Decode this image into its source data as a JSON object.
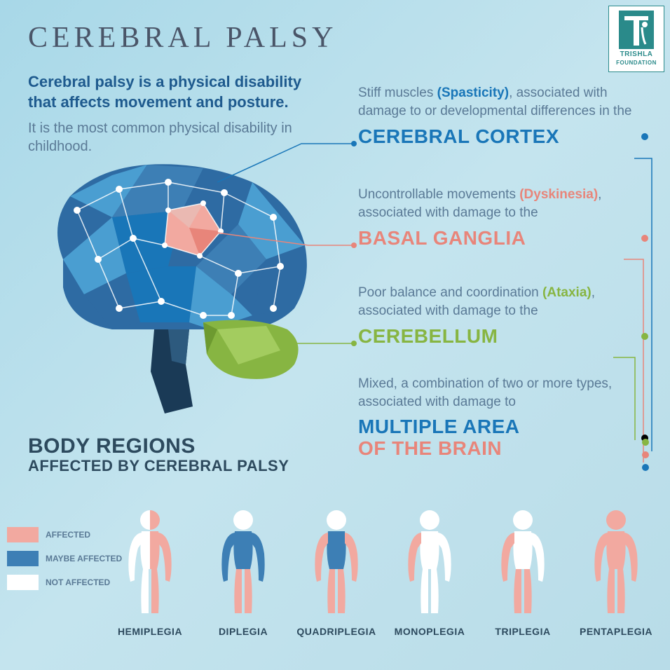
{
  "title": "CEREBRAL PALSY",
  "subtitle": "Cerebral palsy is a physical disability that affects movement and posture.",
  "description": "It is the most common physical disability in childhood.",
  "logo": {
    "org": "TRISHLA",
    "sub": "FOUNDATION"
  },
  "colors": {
    "affected": "#f2a9a0",
    "maybe": "#3d7fb5",
    "not": "#ffffff",
    "cortex": "#1976b8",
    "ganglia": "#e8857a",
    "cerebellum": "#87b542",
    "brain_dark": "#1a3a56",
    "brain_mid": "#2e6ba3",
    "brain_light": "#4a9ed1",
    "text_muted": "#5a7a96"
  },
  "symptoms": [
    {
      "desc_pre": "Stiff muscles ",
      "highlight": "(Spasticity)",
      "desc_post": ", associated with damage to or developmental differences in the",
      "region": "CEREBRAL CORTEX"
    },
    {
      "desc_pre": "Uncontrollable movements ",
      "highlight": "(Dyskinesia)",
      "desc_post": ", associated with damage to the",
      "region": "BASAL GANGLIA"
    },
    {
      "desc_pre": "Poor balance and coordination ",
      "highlight": "(Ataxia)",
      "desc_post": ", associated with damage to the",
      "region": "CEREBELLUM"
    },
    {
      "desc_pre": "Mixed, a combination of two or more types, associated with damage to",
      "highlight": "",
      "desc_post": "",
      "region_l1": "MULTIPLE AREA",
      "region_l2": "OF THE BRAIN"
    }
  ],
  "body_regions": {
    "title": "BODY REGIONS",
    "subtitle": "AFFECTED BY CEREBRAL PALSY"
  },
  "legend": [
    {
      "label": "AFFECTED",
      "color": "#f2a9a0"
    },
    {
      "label": "MAYBE AFFECTED",
      "color": "#3d7fb5"
    },
    {
      "label": "NOT AFFECTED",
      "color": "#ffffff"
    }
  ],
  "figures": [
    {
      "name": "HEMIPLEGIA",
      "left_upper": "#ffffff",
      "left_lower": "#ffffff",
      "right_upper": "#f2a9a0",
      "right_lower": "#f2a9a0",
      "trunk": "split",
      "head": "split"
    },
    {
      "name": "DIPLEGIA",
      "left_upper": "#3d7fb5",
      "left_lower": "#f2a9a0",
      "right_upper": "#3d7fb5",
      "right_lower": "#f2a9a0",
      "trunk": "#3d7fb5",
      "head": "#ffffff"
    },
    {
      "name": "QUADRIPLEGIA",
      "left_upper": "#f2a9a0",
      "left_lower": "#f2a9a0",
      "right_upper": "#f2a9a0",
      "right_lower": "#f2a9a0",
      "trunk": "#3d7fb5",
      "head": "#ffffff"
    },
    {
      "name": "MONOPLEGIA",
      "left_upper": "#f2a9a0",
      "left_lower": "#ffffff",
      "right_upper": "#ffffff",
      "right_lower": "#ffffff",
      "trunk": "#ffffff",
      "head": "#ffffff"
    },
    {
      "name": "TRIPLEGIA",
      "left_upper": "#f2a9a0",
      "left_lower": "#f2a9a0",
      "right_upper": "#ffffff",
      "right_lower": "#f2a9a0",
      "trunk": "#ffffff",
      "head": "#ffffff"
    },
    {
      "name": "PENTAPLEGIA",
      "left_upper": "#f2a9a0",
      "left_lower": "#f2a9a0",
      "right_upper": "#f2a9a0",
      "right_lower": "#f2a9a0",
      "trunk": "#f2a9a0",
      "head": "#f2a9a0"
    }
  ]
}
